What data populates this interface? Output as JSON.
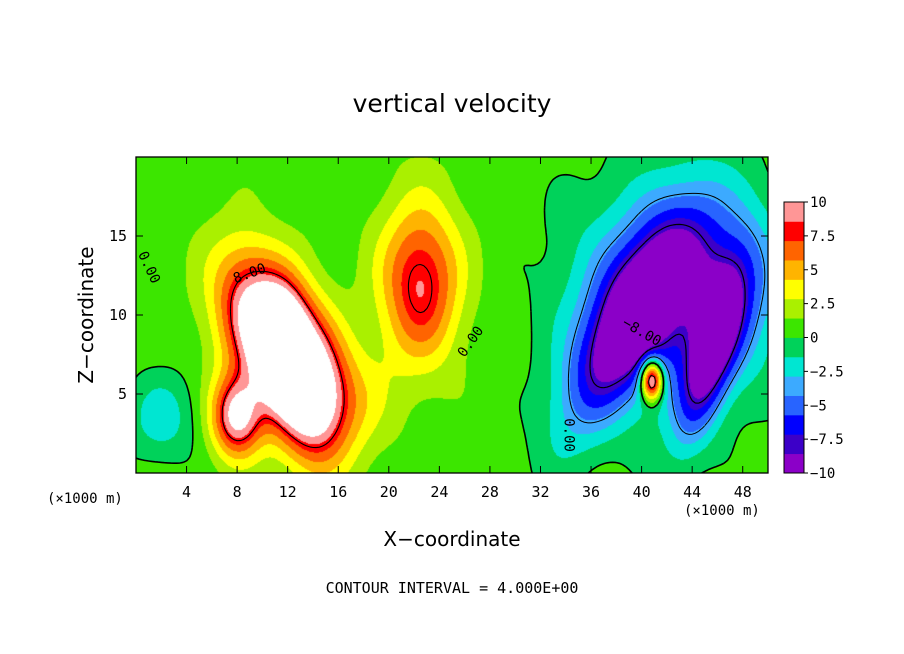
{
  "chart_data": {
    "type": "heatmap",
    "title": "vertical velocity",
    "xlabel": "X−coordinate",
    "ylabel": "Z−coordinate",
    "x_unit": "(×1000 m)",
    "x_unit_right": "(×1000 m)",
    "footer": "CONTOUR INTERVAL = 4.000E+00",
    "xlim": [
      0,
      50
    ],
    "ylim": [
      0,
      20
    ],
    "x_ticks": [
      4,
      8,
      12,
      16,
      20,
      24,
      28,
      32,
      36,
      40,
      44,
      48
    ],
    "y_ticks": [
      5,
      10,
      15
    ],
    "colorbar": {
      "range": [
        -10,
        10
      ],
      "ticks": [
        "10",
        "7.5",
        "5",
        "2.5",
        "0",
        "−2.5",
        "−5",
        "−7.5",
        "−10"
      ],
      "tick_values": [
        10,
        7.5,
        5,
        2.5,
        0,
        -2.5,
        -5,
        -7.5,
        -10
      ],
      "colors": [
        "#8b00c8",
        "#3c00c8",
        "#0000ff",
        "#2864ff",
        "#3caaff",
        "#00e6d2",
        "#00d25a",
        "#3ce600",
        "#aaf000",
        "#ffff00",
        "#ffb400",
        "#ff6400",
        "#ff0000",
        "#ff9696"
      ],
      "saturated_color": "#ffffff"
    },
    "contour_labels": [
      {
        "text": "0.00",
        "x": 1.0,
        "z": 13.0,
        "angle": 65
      },
      {
        "text": "8.00",
        "x": 9.0,
        "z": 12.6,
        "angle": -20
      },
      {
        "text": "0.00",
        "x": 26.5,
        "z": 8.3,
        "angle": -55
      },
      {
        "text": "0.00",
        "x": 34.2,
        "z": 2.4,
        "angle": 90
      },
      {
        "text": "−8.00",
        "x": 40.0,
        "z": 8.9,
        "angle": 30
      }
    ],
    "features": [
      {
        "kind": "updraft",
        "x": 10.0,
        "z": 9.5,
        "peak": 12,
        "sx": 2.2,
        "sz": 3.3,
        "rotation": -25
      },
      {
        "kind": "updraft",
        "x": 13.5,
        "z": 5.5,
        "peak": 12,
        "sx": 2.0,
        "sz": 3.3,
        "rotation": -10
      },
      {
        "kind": "updraft",
        "x": 8.0,
        "z": 3.6,
        "peak": 10,
        "sx": 1.4,
        "sz": 1.8,
        "rotation": 0
      },
      {
        "kind": "updraft",
        "x": 11.5,
        "z": 8.0,
        "peak": 7,
        "sx": 1.2,
        "sz": 2.2,
        "rotation": 0
      },
      {
        "kind": "updraft",
        "x": 22.5,
        "z": 12.0,
        "peak": 8,
        "sx": 2.2,
        "sz": 3.5,
        "rotation": 0
      },
      {
        "kind": "updraft",
        "x": 16.5,
        "z": 4.5,
        "peak": 3,
        "sx": 2.5,
        "sz": 2.5,
        "rotation": 0
      },
      {
        "kind": "downdraft",
        "x": 39.0,
        "z": 9.5,
        "peak": -9.5,
        "sx": 2.0,
        "sz": 5.5,
        "rotation": 35
      },
      {
        "kind": "downdraft",
        "x": 45.5,
        "z": 7.5,
        "peak": -8.5,
        "sx": 1.3,
        "sz": 4.0,
        "rotation": 20
      },
      {
        "kind": "downdraft",
        "x": 41.0,
        "z": 11.0,
        "peak": -5.5,
        "sx": 5.0,
        "sz": 5.0,
        "rotation": 0
      },
      {
        "kind": "downdraft",
        "x": 46.5,
        "z": 12.0,
        "peak": -4.5,
        "sx": 3.5,
        "sz": 4.0,
        "rotation": 0
      },
      {
        "kind": "downdraft",
        "x": 2.0,
        "z": 3.5,
        "peak": -3.0,
        "sx": 2.0,
        "sz": 2.0,
        "rotation": 0
      },
      {
        "kind": "updraft",
        "x": 40.8,
        "z": 5.9,
        "peak": 14,
        "sx": 0.6,
        "sz": 0.9,
        "rotation": 0
      }
    ]
  }
}
